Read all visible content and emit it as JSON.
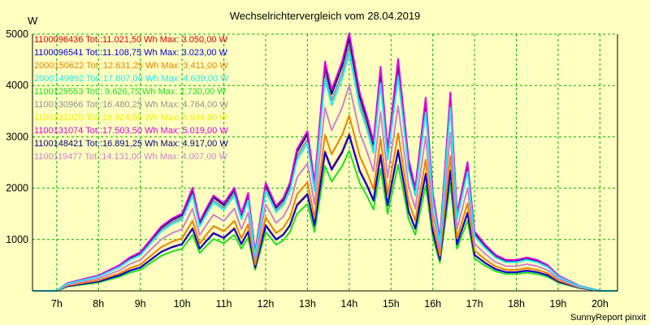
{
  "chart_data": {
    "type": "line",
    "title": "Wechselrichtervergleich vom 28.04.2019",
    "ylabel": "W",
    "xlabel": "",
    "footer": "SunnyReport pinxit",
    "grid": true,
    "ylim": [
      0,
      5000
    ],
    "xlim": [
      6.42,
      20.42
    ],
    "yticks": [
      1000,
      2000,
      3000,
      4000,
      5000
    ],
    "xticks": [
      {
        "label": "7h",
        "value": 7
      },
      {
        "label": "8h",
        "value": 8
      },
      {
        "label": "9h",
        "value": 9
      },
      {
        "label": "10h",
        "value": 10
      },
      {
        "label": "11h",
        "value": 11
      },
      {
        "label": "12h",
        "value": 12
      },
      {
        "label": "13h",
        "value": 13
      },
      {
        "label": "14h",
        "value": 14
      },
      {
        "label": "15h",
        "value": 15
      },
      {
        "label": "16h",
        "value": 16
      },
      {
        "label": "17h",
        "value": 17
      },
      {
        "label": "18h",
        "value": 18
      },
      {
        "label": "19h",
        "value": 19
      },
      {
        "label": "20h",
        "value": 20
      }
    ],
    "x": [
      6.42,
      7.0,
      7.25,
      7.5,
      7.75,
      8.0,
      8.25,
      8.5,
      8.75,
      9.0,
      9.25,
      9.5,
      9.75,
      10.0,
      10.25,
      10.42,
      10.58,
      10.75,
      11.0,
      11.25,
      11.42,
      11.58,
      11.75,
      12.0,
      12.25,
      12.42,
      12.58,
      12.75,
      13.0,
      13.17,
      13.42,
      13.58,
      13.83,
      14.0,
      14.25,
      14.42,
      14.58,
      14.75,
      14.92,
      15.17,
      15.42,
      15.58,
      15.83,
      16.0,
      16.17,
      16.42,
      16.58,
      16.83,
      17.0,
      17.25,
      17.5,
      17.75,
      18.0,
      18.25,
      18.5,
      18.75,
      19.0,
      19.25,
      19.5,
      19.75,
      20.0,
      20.42
    ],
    "base": [
      0,
      0,
      0.03,
      0.04,
      0.05,
      0.06,
      0.08,
      0.1,
      0.13,
      0.15,
      0.2,
      0.25,
      0.28,
      0.3,
      0.4,
      0.27,
      0.32,
      0.37,
      0.34,
      0.4,
      0.3,
      0.38,
      0.15,
      0.42,
      0.33,
      0.36,
      0.42,
      0.55,
      0.62,
      0.42,
      0.89,
      0.78,
      0.89,
      1.0,
      0.77,
      0.68,
      0.58,
      0.87,
      0.55,
      0.9,
      0.51,
      0.4,
      0.75,
      0.38,
      0.2,
      0.77,
      0.3,
      0.5,
      0.23,
      0.18,
      0.14,
      0.12,
      0.12,
      0.13,
      0.12,
      0.1,
      0.06,
      0.04,
      0.02,
      0.01,
      0,
      0
    ],
    "series": [
      {
        "name": "1100096436",
        "legend": "1100096436 Tot.:11.021,50 Wh Max: 3.050,00 W",
        "color": "#e00000",
        "max": 3050
      },
      {
        "name": "1100096541",
        "legend": "1100096541 Tot.:11.108,75 Wh Max: 3.023,00 W",
        "color": "#0000e0",
        "max": 3023
      },
      {
        "name": "2000150622",
        "legend": "2000150622 Tot.:12.631,25 Wh Max: 3.411,00 W",
        "color": "#f08000",
        "max": 3411
      },
      {
        "name": "2000149892",
        "legend": "2000149892 Tot.:17.807,00 Wh Max: 4.639,00 W",
        "color": "#20e8f0",
        "max": 4639
      },
      {
        "name": "1100129553",
        "legend": "1100129553 Tot.: 9.626,75 Wh Max: 2.730,00 W",
        "color": "#20e020",
        "max": 2730
      },
      {
        "name": "1100130966",
        "legend": "1100130966 Tot.:16.480,25 Wh Max: 4.764,00 W",
        "color": "#909090",
        "max": 4764
      },
      {
        "name": "1100131025",
        "legend": "1100131025 Tot.:16.924,50 Wh Max: 4.944,00 W",
        "color": "#f0f000",
        "max": 4944
      },
      {
        "name": "1100131074",
        "legend": "1100131074 Tot.:17.503,50 Wh Max: 5.019,00 W",
        "color": "#e000e0",
        "max": 5019
      },
      {
        "name": "1100148421",
        "legend": "1100148421 Tot.:16.891,25 Wh Max: 4.917,00 W",
        "color": "#000080",
        "max": 4917
      },
      {
        "name": "1100119477",
        "legend": "1100119477 Tot.:14.131,00 Wh Max: 4.007,00 W",
        "color": "#d080d0",
        "max": 4007
      }
    ]
  }
}
